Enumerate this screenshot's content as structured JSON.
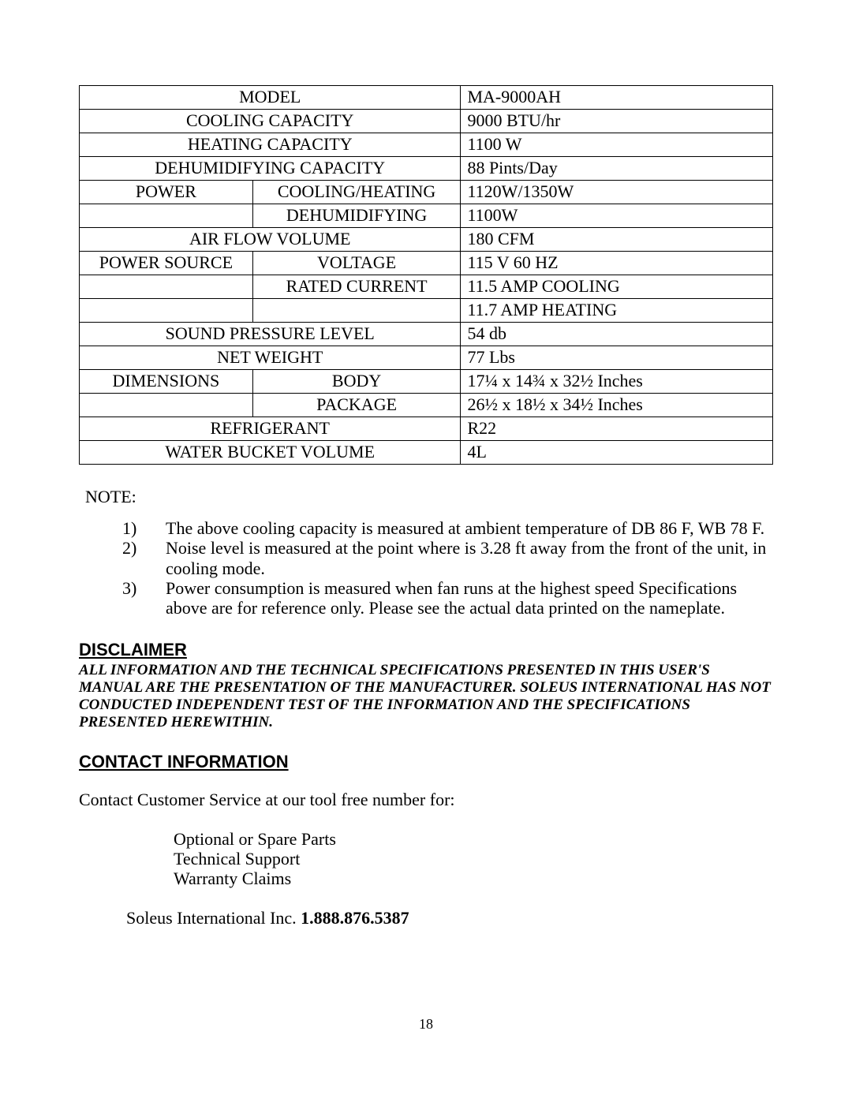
{
  "spec_table": {
    "rows": [
      {
        "left": "MODEL",
        "mid": null,
        "val": "MA-9000AH"
      },
      {
        "left": "COOLING CAPACITY",
        "mid": null,
        "val": "9000 BTU/hr"
      },
      {
        "left": "HEATING CAPACITY",
        "mid": null,
        "val": "1100 W"
      },
      {
        "left": "DEHUMIDIFYING CAPACITY",
        "mid": null,
        "val": "88 Pints/Day"
      },
      {
        "left": "POWER",
        "mid": "COOLING/HEATING",
        "val": "1120W/1350W"
      },
      {
        "left": "",
        "mid": "DEHUMIDIFYING",
        "val": "1100W"
      },
      {
        "left": "AIR FLOW VOLUME",
        "mid": null,
        "val": "180 CFM"
      },
      {
        "left": "POWER SOURCE",
        "mid": "VOLTAGE",
        "val": "115 V 60 HZ"
      },
      {
        "left": "",
        "mid": "RATED CURRENT",
        "val": "11.5 AMP COOLING"
      },
      {
        "left": "",
        "mid": "",
        "val": "11.7 AMP HEATING"
      },
      {
        "left": "SOUND PRESSURE LEVEL",
        "mid": null,
        "val": "54 db"
      },
      {
        "left": "NET WEIGHT",
        "mid": null,
        "val": "77 Lbs"
      },
      {
        "left": "DIMENSIONS",
        "mid": "BODY",
        "val": "17¼ x 14¾ x 32½ Inches"
      },
      {
        "left": "",
        "mid": "PACKAGE",
        "val": "26½ x 18½  x 34½ Inches"
      },
      {
        "left": "REFRIGERANT",
        "mid": null,
        "val": "R22"
      },
      {
        "left": "WATER BUCKET VOLUME",
        "mid": null,
        "val": "4L"
      }
    ]
  },
  "note_label": "NOTE:",
  "notes": [
    "The above cooling capacity is measured at ambient temperature of DB 86 F, WB 78 F.",
    "Noise level is measured at the point where is 3.28 ft away from the front of the unit, in cooling mode.",
    "Power consumption is measured when fan runs at the highest speed Specifications above are for reference only.  Please see the actual data printed on the nameplate."
  ],
  "disclaimer_head": "DISCLAIMER",
  "disclaimer_body": "ALL INFORMATION AND THE TECHNICAL SPECIFICATIONS PRESENTED IN THIS USER'S MANUAL ARE THE PRESENTATION OF THE MANUFACTURER.  SOLEUS INTERNATIONAL HAS NOT CONDUCTED INDEPENDENT TEST OF THE INFORMATION AND THE SPECIFICATIONS PRESENTED HEREWITHIN.",
  "contact_head": "CONTACT INFORMATION",
  "contact_intro": "Contact Customer Service at our tool free number for:",
  "contact_items": [
    "Optional or Spare Parts",
    "Technical Support",
    "Warranty Claims"
  ],
  "company": "Soleus International Inc.",
  "phone": "1.888.876.5387",
  "page_number": "18"
}
